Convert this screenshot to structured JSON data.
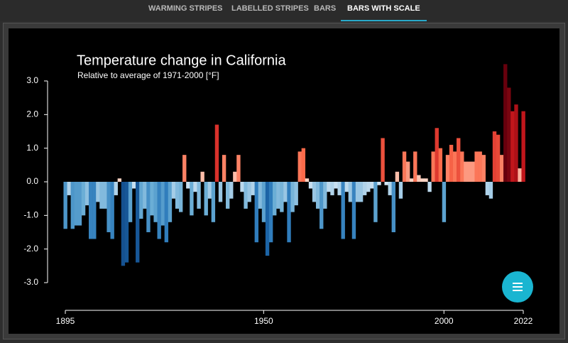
{
  "tabs": [
    "WARMING STRIPES",
    "LABELLED STRIPES",
    "BARS",
    "BARS WITH SCALE"
  ],
  "active_tab": 3,
  "chart_data": {
    "type": "bar",
    "title": "Temperature change in California",
    "subtitle": "Relative to average of 1971-2000  [°F]",
    "x_start": 1895,
    "values": [
      -1.4,
      -0.4,
      -1.4,
      -1.3,
      -1.3,
      -1.0,
      -0.7,
      -1.7,
      -1.7,
      -0.6,
      -0.8,
      -0.8,
      -1.5,
      -1.7,
      -0.4,
      0.1,
      -2.5,
      -2.4,
      -1.2,
      -0.2,
      -2.4,
      -1.1,
      -0.8,
      -1.5,
      -1.0,
      -1.2,
      -1.7,
      -1.3,
      -1.8,
      -1.2,
      -0.5,
      -0.8,
      -0.9,
      0.8,
      -0.2,
      -1.0,
      -0.3,
      -0.8,
      0.3,
      -1.0,
      -0.5,
      -1.2,
      1.7,
      -0.6,
      0.8,
      -0.8,
      -0.5,
      0.3,
      0.8,
      -0.3,
      -0.8,
      -0.6,
      -0.4,
      -1.8,
      -0.8,
      -1.2,
      -2.2,
      -1.8,
      -1.0,
      -0.8,
      -0.9,
      -0.6,
      -1.8,
      -0.9,
      -0.7,
      0.9,
      1.0,
      0.1,
      -0.2,
      -0.6,
      -0.8,
      -1.4,
      -0.8,
      -0.3,
      -0.4,
      -0.2,
      -0.4,
      -1.7,
      -0.3,
      -0.6,
      -1.7,
      -0.6,
      -0.6,
      -0.4,
      -0.3,
      -0.2,
      -1.2,
      -0.1,
      1.3,
      -0.1,
      -0.4,
      -1.5,
      0.3,
      -0.5,
      0.9,
      0.6,
      0.1,
      0.9,
      0.2,
      0.1,
      0.1,
      -0.3,
      0.9,
      1.6,
      1.0,
      -1.2,
      0.8,
      1.1,
      0.9,
      1.3,
      0.9,
      0.6,
      0.6,
      0.6,
      0.9,
      0.9,
      0.8,
      -0.4,
      -0.5,
      1.5,
      1.4,
      0.8,
      3.5,
      2.8,
      2.1,
      2.3,
      0.4,
      2.1
    ],
    "positive_colors": [
      "#fee0d2",
      "#fb6a4a",
      "#cb181d",
      "#67000d"
    ],
    "negative_colors": [
      "#deebf7",
      "#6baed6",
      "#2171b5",
      "#08306b"
    ],
    "xlim": [
      1895,
      2022
    ],
    "xticks": [
      1895,
      1950,
      2000,
      2022
    ],
    "ylim": [
      -3,
      3
    ],
    "yticks": [
      {
        "value": -3,
        "label": "-3.0"
      },
      {
        "value": -2,
        "label": "-2.0"
      },
      {
        "value": -1,
        "label": "-1.0"
      },
      {
        "value": 0,
        "label": "0.0"
      },
      {
        "value": 1,
        "label": "1.0"
      },
      {
        "value": 2,
        "label": "2.0"
      },
      {
        "value": 3,
        "label": "3.0"
      }
    ]
  }
}
